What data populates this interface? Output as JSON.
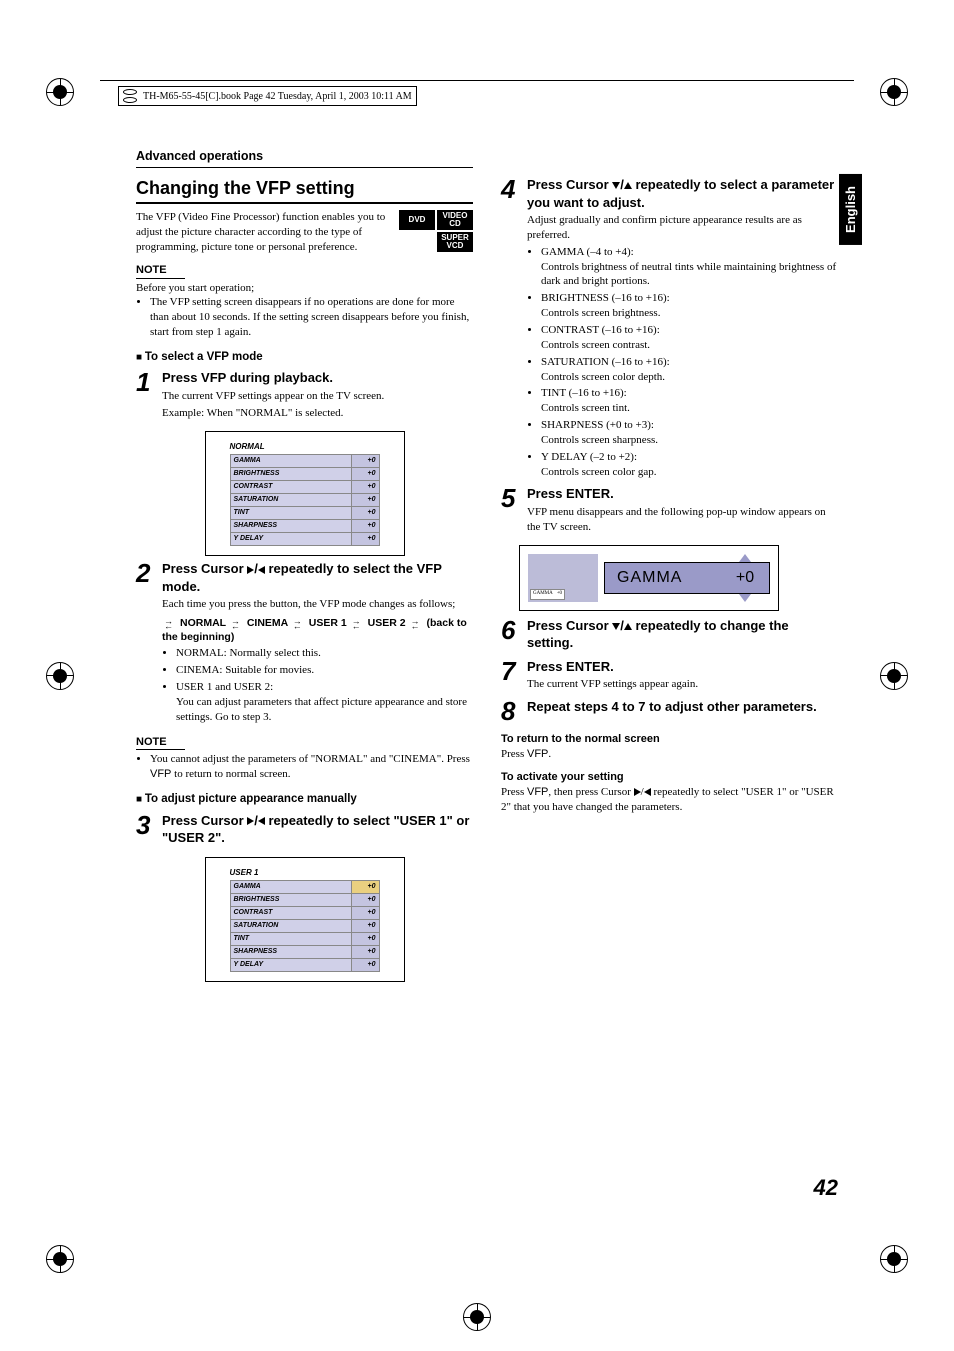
{
  "bookLabel": "TH-M65-55-45[C].book  Page 42  Tuesday, April 1, 2003  10:11 AM",
  "sideTab": "English",
  "pageNumber": "42",
  "sectionHeader": "Advanced operations",
  "topicTitle": "Changing the VFP setting",
  "intro": "The VFP (Video Fine Processor) function enables you to adjust the picture character according to the type of programming, picture tone or personal preference.",
  "discBadges": [
    "DVD",
    "VIDEO CD",
    "SUPER VCD"
  ],
  "noteLabel1": "NOTE",
  "noteBefore": "Before you start operation;",
  "noteBullet1": "The VFP setting screen disappears if no operations are done for more than about 10 seconds. If the setting screen disappears before you finish, start from step 1 again.",
  "subHdr1": "To select a VFP mode",
  "step1": {
    "num": "1",
    "title": "Press VFP during playback.",
    "line1": "The current VFP settings appear on the TV screen.",
    "line2": "Example: When \"NORMAL\" is selected."
  },
  "vfpTables": {
    "rows": [
      "GAMMA",
      "BRIGHTNESS",
      "CONTRAST",
      "SATURATION",
      "TINT",
      "SHARPNESS",
      "Y DELAY"
    ],
    "val": "+0",
    "title1": "NORMAL",
    "title2": "USER 1"
  },
  "step2": {
    "num": "2",
    "titleA": "Press Cursor ",
    "titleB": " repeatedly to select the VFP mode.",
    "line1": "Each time you press the button, the VFP mode changes as follows;",
    "cycle": [
      "NORMAL",
      "CINEMA",
      "USER 1",
      "USER 2",
      "(back to the beginning)"
    ],
    "b1": "NORMAL:  Normally select this.",
    "b2": "CINEMA:   Suitable for movies.",
    "b3a": "USER 1 and USER 2:",
    "b3b": "You can adjust parameters that affect picture appearance and store settings. Go to step 3."
  },
  "noteLabel2": "NOTE",
  "note2bullet": "You cannot adjust the parameters of \"NORMAL\" and \"CINEMA\". Press ",
  "note2bulletB": " to return to normal screen.",
  "subHdr2": "To adjust picture appearance manually",
  "step3": {
    "num": "3",
    "titleA": "Press Cursor ",
    "titleB": " repeatedly to select \"USER 1\" or \"USER 2\"."
  },
  "step4": {
    "num": "4",
    "titleA": "Press Cursor ",
    "titleB": " repeatedly to select a parameter you want to adjust.",
    "line1": "Adjust gradually and confirm picture appearance results are as preferred.",
    "params": [
      {
        "h": "GAMMA (–4 to +4):",
        "d": "Controls brightness of neutral tints while maintaining brightness of dark and bright portions."
      },
      {
        "h": "BRIGHTNESS (–16 to +16):",
        "d": "Controls screen brightness."
      },
      {
        "h": "CONTRAST (–16 to +16):",
        "d": "Controls screen contrast."
      },
      {
        "h": "SATURATION (–16 to +16):",
        "d": "Controls screen color depth."
      },
      {
        "h": "TINT (–16 to +16):",
        "d": "Controls screen tint."
      },
      {
        "h": "SHARPNESS (+0 to +3):",
        "d": "Controls screen sharpness."
      },
      {
        "h": "Y DELAY (–2 to +2):",
        "d": "Controls screen color gap."
      }
    ]
  },
  "step5": {
    "num": "5",
    "title": "Press ENTER.",
    "line1": "VFP menu disappears and the following pop-up window appears on the TV screen."
  },
  "gamma": {
    "label": "GAMMA",
    "val": "+0",
    "mini": "GAMMA",
    "miniVal": "+0"
  },
  "step6": {
    "num": "6",
    "titleA": "Press Cursor ",
    "titleB": " repeatedly to change the setting."
  },
  "step7": {
    "num": "7",
    "title": "Press ENTER.",
    "line1": "The current VFP settings appear again."
  },
  "step8": {
    "num": "8",
    "title": "Repeat steps 4 to 7 to adjust other parameters."
  },
  "return": {
    "h": "To return to the normal screen",
    "t1": "Press ",
    "t2": "."
  },
  "activate": {
    "h": "To activate your setting",
    "t1": "Press ",
    "t2": ", then press Cursor ",
    "t3": " repeatedly to select \"USER 1\" or \"USER 2\" that you have changed the parameters."
  },
  "vfpWord": "VFP"
}
